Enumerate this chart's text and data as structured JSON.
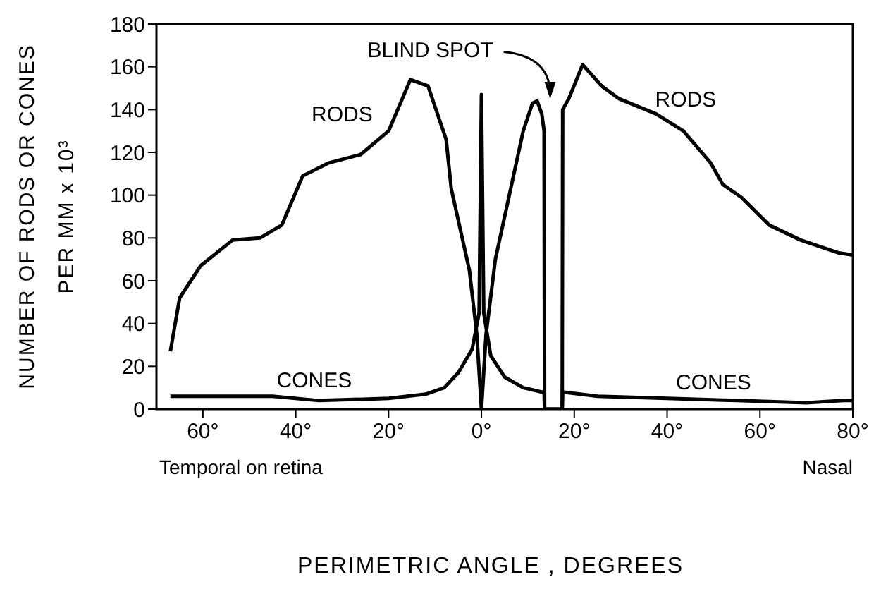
{
  "chart_data": {
    "type": "line",
    "xlabel": "PERIMETRIC ANGLE , DEGREES",
    "ylabel": "NUMBER OF RODS OR CONES\nPER MM x 10³",
    "xlim": [
      -70,
      80
    ],
    "ylim": [
      0,
      180
    ],
    "xticks": [
      {
        "value": -60,
        "label": "60°"
      },
      {
        "value": -40,
        "label": "40°"
      },
      {
        "value": -20,
        "label": "20°"
      },
      {
        "value": 0,
        "label": "0°"
      },
      {
        "value": 20,
        "label": "20°"
      },
      {
        "value": 40,
        "label": "40°"
      },
      {
        "value": 60,
        "label": "60°"
      },
      {
        "value": 80,
        "label": "80°"
      }
    ],
    "yticks": [
      0,
      20,
      40,
      60,
      80,
      100,
      120,
      140,
      160,
      180
    ],
    "grid": false,
    "legend": false,
    "marker": "none",
    "line_style": "solid",
    "series": [
      {
        "name": "RODS",
        "color": "#000000",
        "x": [
          -67,
          -65,
          -60.5,
          -53.6,
          -47.7,
          -43,
          -38.5,
          -33,
          -26,
          -20,
          -15.3,
          -11.5,
          -7.6,
          -6.5,
          -2.6,
          -1,
          0,
          1,
          3,
          6,
          9,
          11,
          12,
          13,
          13.5,
          13.6,
          17.4,
          17.5,
          18.8,
          21.8,
          25.9,
          29.7,
          37.6,
          43.5,
          49.4,
          52,
          56,
          62,
          68.8,
          77,
          80
        ],
        "values": [
          27,
          52,
          67,
          79,
          80,
          86,
          109,
          115,
          119,
          130,
          154,
          151,
          126,
          103,
          65,
          35,
          0,
          35,
          70,
          100,
          130,
          143,
          144,
          138,
          130,
          0,
          0,
          140,
          145,
          161,
          151,
          145,
          138,
          130,
          115,
          105,
          99,
          86,
          79,
          73,
          72
        ]
      },
      {
        "name": "CONES",
        "color": "#000000",
        "x": [
          -67,
          -55,
          -45,
          -35,
          -20,
          -12,
          -8,
          -5,
          -2,
          -0.5,
          0,
          0.5,
          2,
          5,
          9,
          13,
          13.5,
          13.6,
          17.4,
          17.5,
          25,
          40,
          55,
          70,
          78,
          80
        ],
        "values": [
          6,
          6,
          6,
          4,
          5,
          7,
          10,
          17,
          28,
          45,
          147,
          45,
          25,
          15,
          10,
          8,
          8,
          0,
          0,
          8,
          6,
          5,
          4,
          3,
          4,
          4
        ]
      }
    ],
    "annotations": [
      "BLIND SPOT",
      "Temporal on retina",
      "Nasal"
    ]
  }
}
